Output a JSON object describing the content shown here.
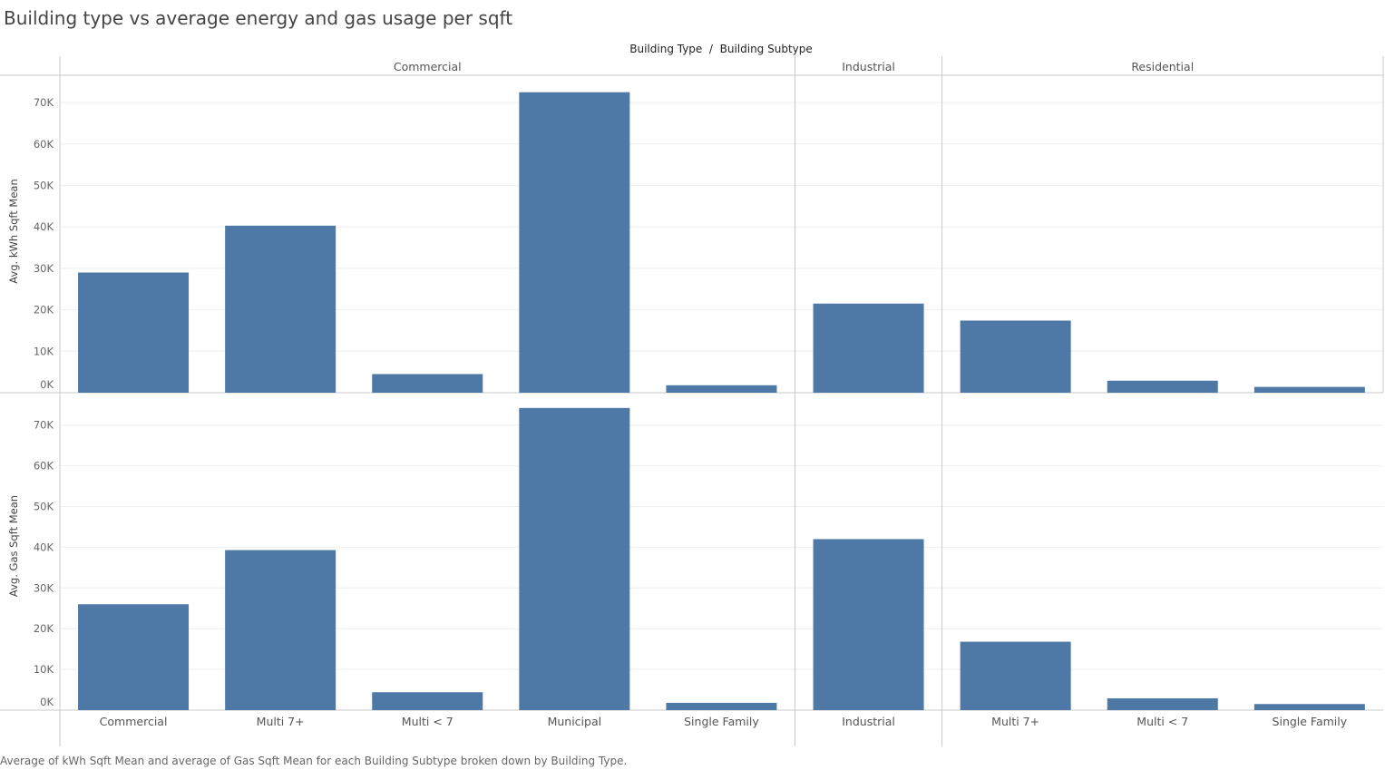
{
  "title": "Building type vs average energy and gas usage per sqft",
  "caption": "Average of kWh Sqft Mean and average of Gas Sqft Mean for each Building Subtype broken down by Building Type.",
  "colors": {
    "bar": "#4e79a7",
    "gridline": "#eeeeee",
    "divider": "#c8c8c8"
  },
  "chart_data": {
    "type": "bar",
    "column_header": "Building Type  /  Building Subtype",
    "groups": [
      {
        "name": "Commercial",
        "subtypes": [
          "Commercial",
          "Multi 7+",
          "Multi < 7",
          "Municipal",
          "Single Family"
        ]
      },
      {
        "name": "Industrial",
        "subtypes": [
          "Industrial"
        ]
      },
      {
        "name": "Residential",
        "subtypes": [
          "Multi 7+",
          "Multi < 7",
          "Single Family"
        ]
      }
    ],
    "series": [
      {
        "name": "Avg. kWh Sqft Mean",
        "ylabel": "Avg. kWh Sqft Mean",
        "ylim": [
          0,
          75000
        ],
        "ticks": [
          0,
          10000,
          20000,
          30000,
          40000,
          50000,
          60000,
          70000
        ],
        "tick_labels": [
          "0K",
          "10K",
          "20K",
          "30K",
          "40K",
          "50K",
          "60K",
          "70K"
        ],
        "values": [
          29000,
          40300,
          4500,
          72500,
          1800,
          21500,
          17400,
          2900,
          1400
        ]
      },
      {
        "name": "Avg. Gas Sqft Mean",
        "ylabel": "Avg. Gas Sqft Mean",
        "ylim": [
          0,
          75000
        ],
        "ticks": [
          0,
          10000,
          20000,
          30000,
          40000,
          50000,
          60000,
          70000
        ],
        "tick_labels": [
          "0K",
          "10K",
          "20K",
          "30K",
          "40K",
          "50K",
          "60K",
          "70K"
        ],
        "values": [
          26000,
          39300,
          4400,
          74200,
          1800,
          42000,
          16800,
          2900,
          1500
        ]
      }
    ],
    "grid": true,
    "legend": "none"
  }
}
